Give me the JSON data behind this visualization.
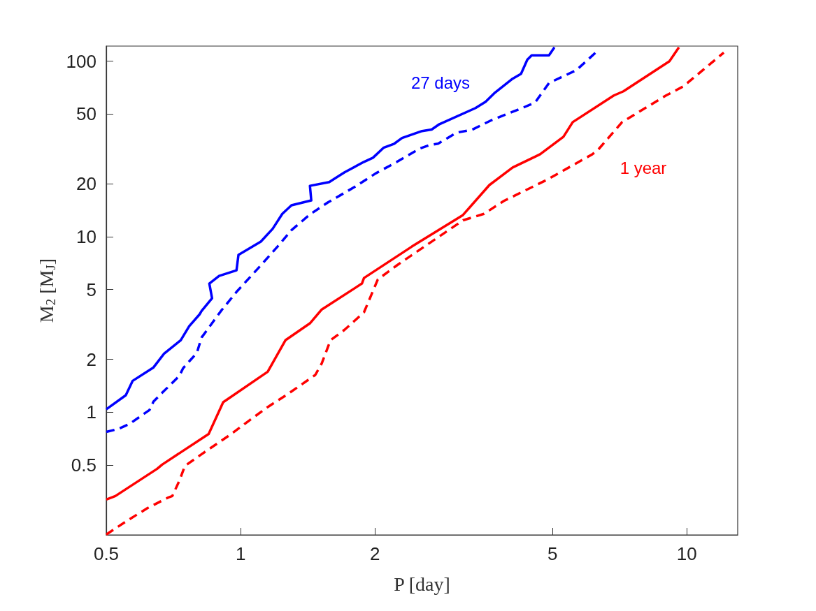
{
  "chart_data": {
    "type": "line",
    "xlabel": "P [day]",
    "ylabel": "M$_{2}$ [M$_{J}$]",
    "log": "xy",
    "grid": false,
    "marker": "none",
    "xlim": [
      0.5,
      13
    ],
    "ylim": [
      0.2,
      122
    ],
    "xticks": [
      0.5,
      1,
      2,
      5,
      10
    ],
    "yticks": [
      0.5,
      1,
      2,
      5,
      10,
      20,
      50,
      100
    ],
    "annotations": [
      "27 days",
      "1 year"
    ],
    "series": [
      {
        "color": "#0000ff",
        "line_style": "solid",
        "x": [
          0.5,
          0.553,
          0.573,
          0.638,
          0.674,
          0.734,
          0.767,
          0.809,
          0.818,
          0.863,
          0.851,
          0.895,
          0.979,
          0.989,
          1.11,
          1.18,
          1.24,
          1.3,
          1.44,
          1.43,
          1.58,
          1.71,
          1.89,
          1.98,
          2.09,
          2.21,
          2.3,
          2.55,
          2.68,
          2.79,
          3.36,
          3.54,
          3.7,
          4.07,
          4.25,
          4.39,
          4.49,
          4.91,
          5.05
        ],
        "values": [
          1.04,
          1.25,
          1.51,
          1.8,
          2.16,
          2.57,
          3.09,
          3.61,
          3.78,
          4.46,
          5.41,
          5.98,
          6.44,
          7.88,
          9.38,
          11.1,
          13.5,
          15.1,
          16.1,
          19.5,
          20.5,
          23.3,
          26.7,
          28.2,
          32.1,
          33.9,
          36.5,
          40,
          40.8,
          43.8,
          54.1,
          58.7,
          65.6,
          79.5,
          84.8,
          102,
          108,
          108,
          120
        ]
      },
      {
        "color": "#0000ff",
        "line_style": "dashed",
        "x": [
          0.5,
          0.531,
          0.563,
          0.625,
          0.638,
          0.667,
          0.729,
          0.743,
          0.798,
          0.818,
          0.904,
          0.979,
          1.11,
          1.21,
          1.3,
          1.43,
          1.57,
          1.8,
          2.01,
          2.24,
          2.52,
          2.65,
          2.77,
          3.05,
          3.3,
          3.66,
          4.31,
          4.57,
          4.91,
          5.65,
          6.27
        ],
        "values": [
          0.773,
          0.802,
          0.856,
          1.03,
          1.15,
          1.29,
          1.61,
          1.78,
          2.18,
          2.67,
          3.78,
          4.85,
          6.87,
          8.79,
          10.9,
          13.4,
          15.7,
          19.2,
          23,
          26.7,
          31.8,
          33.3,
          33.9,
          39.2,
          40.7,
          46.3,
          54.6,
          58.2,
          75.2,
          88.8,
          113
        ]
      },
      {
        "color": "#ff0000",
        "line_style": "solid",
        "x": [
          0.5,
          0.524,
          0.65,
          0.667,
          0.848,
          0.914,
          1.15,
          1.26,
          1.43,
          1.52,
          1.87,
          1.89,
          2.42,
          3.15,
          3.61,
          4.07,
          4.69,
          5.29,
          5.55,
          6.86,
          7.21,
          9.14,
          9.6
        ],
        "values": [
          0.318,
          0.333,
          0.476,
          0.503,
          0.752,
          1.14,
          1.7,
          2.57,
          3.21,
          3.85,
          5.41,
          5.82,
          8.79,
          13.3,
          19.7,
          24.8,
          29.5,
          37.1,
          45,
          63.8,
          67.4,
          100,
          120
        ]
      },
      {
        "color": "#ff0000",
        "line_style": "dashed",
        "x": [
          0.5,
          0.557,
          0.618,
          0.689,
          0.703,
          0.729,
          0.75,
          0.818,
          0.944,
          1.04,
          1.15,
          1.27,
          1.47,
          1.52,
          1.59,
          1.71,
          1.89,
          2.03,
          2.24,
          2.46,
          3.15,
          3.51,
          3.89,
          4.54,
          4.84,
          6.14,
          6.34,
          7.16,
          8.98,
          9.82,
          12.1
        ],
        "values": [
          0.201,
          0.241,
          0.284,
          0.327,
          0.333,
          0.407,
          0.494,
          0.577,
          0.739,
          0.888,
          1.07,
          1.26,
          1.63,
          1.9,
          2.57,
          2.95,
          3.71,
          5.71,
          6.87,
          8.09,
          12.4,
          13.5,
          16,
          19.4,
          21,
          29.5,
          31.5,
          45,
          63.8,
          71.9,
          112
        ]
      }
    ]
  }
}
